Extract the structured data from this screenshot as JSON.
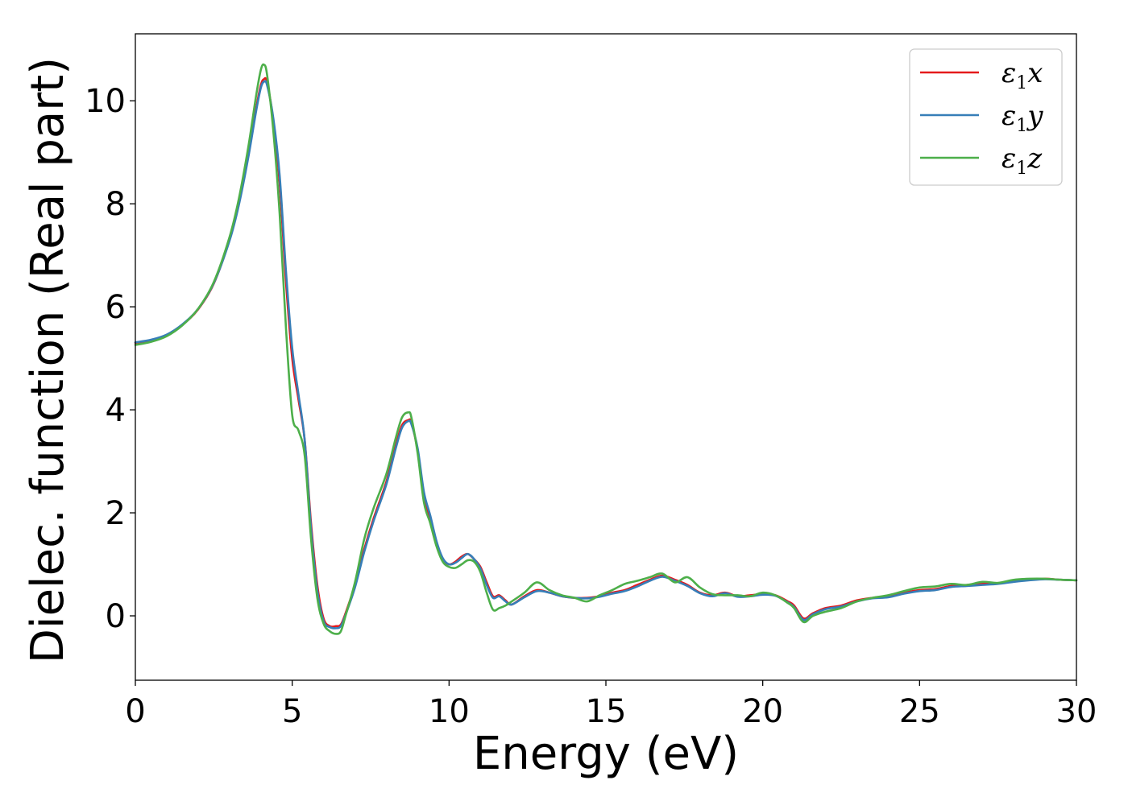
{
  "chart_data": {
    "type": "line",
    "title": "",
    "xlabel": "Energy (eV)",
    "ylabel": "Dielec. function (Real part)",
    "xlim": [
      0,
      30
    ],
    "ylim": [
      -1.25,
      11.3
    ],
    "xticks": [
      0,
      5,
      10,
      15,
      20,
      25,
      30
    ],
    "yticks": [
      0,
      2,
      4,
      6,
      8,
      10
    ],
    "grid": false,
    "legend": "top-right",
    "series": [
      {
        "name": "ε1x",
        "name_base": "ε",
        "name_sub": "1",
        "name_var": "x",
        "color": "#e41a1c",
        "x": [
          0,
          0.5,
          1,
          1.5,
          2,
          2.5,
          3,
          3.3,
          3.6,
          3.85,
          4,
          4.1,
          4.2,
          4.4,
          4.6,
          4.8,
          5.0,
          5.2,
          5.4,
          5.6,
          5.8,
          6.0,
          6.2,
          6.4,
          6.55,
          6.7,
          7.0,
          7.3,
          7.6,
          8.0,
          8.3,
          8.5,
          8.7,
          8.8,
          9.0,
          9.2,
          9.4,
          9.6,
          9.8,
          10.0,
          10.2,
          10.4,
          10.6,
          10.8,
          11.0,
          11.2,
          11.4,
          11.6,
          11.8,
          12.0,
          12.4,
          12.8,
          13.2,
          13.6,
          14.0,
          14.4,
          14.8,
          15.2,
          15.6,
          16.0,
          16.4,
          16.8,
          17.2,
          17.6,
          18.0,
          18.4,
          18.8,
          19.2,
          19.6,
          20.0,
          20.4,
          20.8,
          21.0,
          21.3,
          21.6,
          22.0,
          22.5,
          23.0,
          23.5,
          24.0,
          24.5,
          25.0,
          25.5,
          26.0,
          26.5,
          27.0,
          27.5,
          28.0,
          28.5,
          29.0,
          29.5,
          30.0
        ],
        "y": [
          5.3,
          5.35,
          5.45,
          5.65,
          5.95,
          6.45,
          7.3,
          8.0,
          8.95,
          9.85,
          10.3,
          10.42,
          10.35,
          9.6,
          8.4,
          6.5,
          5.0,
          4.2,
          3.4,
          1.8,
          0.6,
          -0.05,
          -0.2,
          -0.2,
          -0.17,
          0.05,
          0.6,
          1.3,
          1.9,
          2.6,
          3.3,
          3.7,
          3.8,
          3.75,
          3.2,
          2.3,
          1.9,
          1.4,
          1.1,
          1.0,
          1.05,
          1.15,
          1.2,
          1.1,
          0.95,
          0.65,
          0.38,
          0.4,
          0.3,
          0.22,
          0.38,
          0.5,
          0.45,
          0.38,
          0.35,
          0.35,
          0.38,
          0.45,
          0.5,
          0.6,
          0.7,
          0.78,
          0.7,
          0.6,
          0.45,
          0.4,
          0.45,
          0.38,
          0.4,
          0.42,
          0.4,
          0.28,
          0.2,
          -0.05,
          0.05,
          0.15,
          0.2,
          0.3,
          0.35,
          0.38,
          0.45,
          0.5,
          0.52,
          0.58,
          0.6,
          0.62,
          0.63,
          0.68,
          0.7,
          0.72,
          0.7,
          0.69
        ]
      },
      {
        "name": "ε1y",
        "name_base": "ε",
        "name_sub": "1",
        "name_var": "y",
        "color": "#377eb8",
        "x": [
          0,
          0.5,
          1,
          1.5,
          2,
          2.5,
          3,
          3.3,
          3.6,
          3.85,
          4,
          4.1,
          4.2,
          4.4,
          4.6,
          4.8,
          5.0,
          5.2,
          5.4,
          5.6,
          5.8,
          6.0,
          6.2,
          6.4,
          6.55,
          6.7,
          7.0,
          7.3,
          7.6,
          8.0,
          8.3,
          8.5,
          8.7,
          8.8,
          9.0,
          9.2,
          9.4,
          9.6,
          9.8,
          10.0,
          10.2,
          10.4,
          10.6,
          10.8,
          11.0,
          11.2,
          11.4,
          11.6,
          11.8,
          12.0,
          12.4,
          12.8,
          13.2,
          13.6,
          14.0,
          14.4,
          14.8,
          15.2,
          15.6,
          16.0,
          16.4,
          16.8,
          17.2,
          17.6,
          18.0,
          18.4,
          18.8,
          19.2,
          19.6,
          20.0,
          20.4,
          20.8,
          21.0,
          21.3,
          21.6,
          22.0,
          22.5,
          23.0,
          23.5,
          24.0,
          24.5,
          25.0,
          25.5,
          26.0,
          26.5,
          27.0,
          27.5,
          28.0,
          28.5,
          29.0,
          29.5,
          30.0
        ],
        "y": [
          5.31,
          5.36,
          5.46,
          5.66,
          5.96,
          6.46,
          7.28,
          7.98,
          8.9,
          9.8,
          10.25,
          10.37,
          10.3,
          9.65,
          8.55,
          6.7,
          5.2,
          4.3,
          3.4,
          1.7,
          0.5,
          -0.1,
          -0.22,
          -0.24,
          -0.2,
          0.02,
          0.55,
          1.25,
          1.85,
          2.55,
          3.25,
          3.65,
          3.78,
          3.72,
          3.25,
          2.4,
          1.95,
          1.45,
          1.12,
          1.0,
          1.03,
          1.12,
          1.2,
          1.1,
          0.92,
          0.6,
          0.35,
          0.38,
          0.28,
          0.22,
          0.36,
          0.48,
          0.45,
          0.38,
          0.35,
          0.34,
          0.37,
          0.43,
          0.48,
          0.57,
          0.68,
          0.76,
          0.68,
          0.58,
          0.44,
          0.38,
          0.44,
          0.37,
          0.38,
          0.41,
          0.39,
          0.26,
          0.17,
          -0.08,
          0.03,
          0.13,
          0.18,
          0.28,
          0.34,
          0.36,
          0.43,
          0.48,
          0.5,
          0.56,
          0.58,
          0.6,
          0.62,
          0.66,
          0.69,
          0.71,
          0.7,
          0.69
        ]
      },
      {
        "name": "ε1z",
        "name_base": "ε",
        "name_sub": "1",
        "name_var": "z",
        "color": "#4daf4a",
        "x": [
          0,
          0.5,
          1,
          1.5,
          2,
          2.5,
          3,
          3.3,
          3.6,
          3.85,
          4,
          4.1,
          4.2,
          4.4,
          4.6,
          4.8,
          5.0,
          5.2,
          5.4,
          5.6,
          5.8,
          6.0,
          6.2,
          6.4,
          6.55,
          6.7,
          7.0,
          7.3,
          7.6,
          8.0,
          8.3,
          8.5,
          8.7,
          8.8,
          9.0,
          9.2,
          9.4,
          9.6,
          9.8,
          10.0,
          10.2,
          10.4,
          10.6,
          10.8,
          11.0,
          11.2,
          11.4,
          11.6,
          11.8,
          12.0,
          12.4,
          12.8,
          13.2,
          13.6,
          14.0,
          14.4,
          14.8,
          15.2,
          15.6,
          16.0,
          16.4,
          16.8,
          17.2,
          17.6,
          18.0,
          18.4,
          18.8,
          19.2,
          19.6,
          20.0,
          20.4,
          20.8,
          21.0,
          21.3,
          21.6,
          22.0,
          22.5,
          23.0,
          23.5,
          24.0,
          24.5,
          25.0,
          25.5,
          26.0,
          26.5,
          27.0,
          27.5,
          28.0,
          28.5,
          29.0,
          29.5,
          30.0
        ],
        "y": [
          5.26,
          5.32,
          5.43,
          5.64,
          5.96,
          6.48,
          7.35,
          8.1,
          9.1,
          10.1,
          10.6,
          10.7,
          10.5,
          9.4,
          7.8,
          5.6,
          3.9,
          3.6,
          3.1,
          1.5,
          0.35,
          -0.15,
          -0.3,
          -0.35,
          -0.3,
          0.0,
          0.65,
          1.5,
          2.1,
          2.75,
          3.45,
          3.85,
          3.95,
          3.85,
          3.15,
          2.2,
          1.8,
          1.35,
          1.05,
          0.95,
          0.93,
          1.0,
          1.08,
          1.05,
          0.85,
          0.45,
          0.12,
          0.15,
          0.2,
          0.28,
          0.45,
          0.65,
          0.5,
          0.4,
          0.35,
          0.28,
          0.4,
          0.5,
          0.62,
          0.68,
          0.75,
          0.82,
          0.65,
          0.75,
          0.55,
          0.42,
          0.4,
          0.4,
          0.38,
          0.45,
          0.4,
          0.25,
          0.15,
          -0.12,
          0.0,
          0.08,
          0.15,
          0.28,
          0.35,
          0.4,
          0.48,
          0.55,
          0.57,
          0.62,
          0.6,
          0.66,
          0.64,
          0.7,
          0.72,
          0.72,
          0.7,
          0.69
        ]
      }
    ]
  }
}
